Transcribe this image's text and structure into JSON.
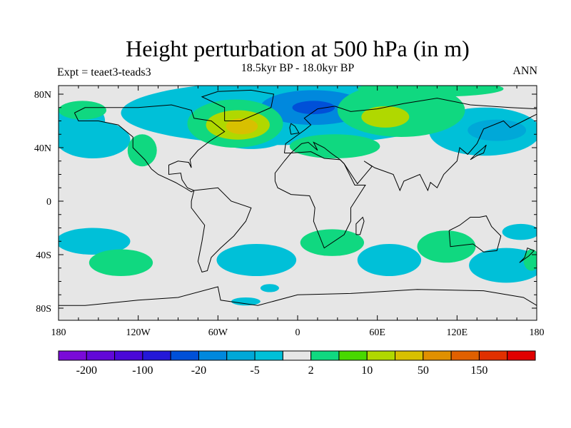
{
  "chart_data": {
    "type": "heatmap",
    "title": "Height perturbation at 500 hPa (in m)",
    "subtitle": "18.5kyr BP - 18.0kyr BP",
    "left_label": "Expt = teaet3-teads3",
    "right_label": "ANN",
    "xlim": [
      -180,
      180
    ],
    "ylim": [
      -89,
      86
    ],
    "x_ticks": [
      {
        "v": -180,
        "label": "180"
      },
      {
        "v": -120,
        "label": "120W"
      },
      {
        "v": -60,
        "label": "60W"
      },
      {
        "v": 0,
        "label": "0"
      },
      {
        "v": 60,
        "label": "60E"
      },
      {
        "v": 120,
        "label": "120E"
      },
      {
        "v": 180,
        "label": "180"
      }
    ],
    "y_ticks": [
      {
        "v": 80,
        "label": "80N"
      },
      {
        "v": 40,
        "label": "40N"
      },
      {
        "v": 0,
        "label": "0"
      },
      {
        "v": -40,
        "label": "40S"
      },
      {
        "v": -80,
        "label": "80S"
      }
    ],
    "colorbar": {
      "colors": [
        "#7a0ad8",
        "#6208d8",
        "#4a08d8",
        "#2418d8",
        "#0050d8",
        "#0088dd",
        "#00a8d8",
        "#00c0d8",
        "#e6e6e6",
        "#10d880",
        "#48d800",
        "#b0d800",
        "#d8c000",
        "#e09000",
        "#e06000",
        "#e03000",
        "#e00000"
      ],
      "labels": [
        {
          "after_box": 1,
          "label": "-200"
        },
        {
          "after_box": 3,
          "label": "-100"
        },
        {
          "after_box": 5,
          "label": "-20"
        },
        {
          "after_box": 7,
          "label": "-5"
        },
        {
          "after_box": 9,
          "label": "2"
        },
        {
          "after_box": 11,
          "label": "10"
        },
        {
          "after_box": 13,
          "label": "50"
        },
        {
          "after_box": 15,
          "label": "150"
        }
      ]
    },
    "anomaly_regions": [
      {
        "lon": -9,
        "lat": 66,
        "rlon": 124,
        "rlat": 24,
        "color_index": 7
      },
      {
        "lon": -154,
        "lat": 46,
        "rlon": 28,
        "rlat": 14,
        "color_index": 7
      },
      {
        "lon": -165,
        "lat": 60,
        "rlon": 20,
        "rlat": 14,
        "color_index": 7
      },
      {
        "lon": 141,
        "lat": 52,
        "rlon": 42,
        "rlat": 18,
        "color_index": 7
      },
      {
        "lon": -35,
        "lat": 47,
        "rlon": 25,
        "rlat": 8,
        "color_index": 7
      },
      {
        "lon": 12,
        "lat": 70,
        "rlon": 40,
        "rlat": 13,
        "color_index": 5
      },
      {
        "lon": 12,
        "lat": 70,
        "rlon": 16,
        "rlat": 5,
        "color_index": 4
      },
      {
        "lon": 150,
        "lat": 53,
        "rlon": 22,
        "rlat": 8,
        "color_index": 6
      },
      {
        "lon": 78,
        "lat": 68,
        "rlon": 48,
        "rlat": 20,
        "color_index": 9
      },
      {
        "lon": 100,
        "lat": 84,
        "rlon": 55,
        "rlat": 6,
        "color_index": 9
      },
      {
        "lon": 66,
        "lat": 63,
        "rlon": 18,
        "rlat": 8,
        "color_index": 11
      },
      {
        "lon": -47,
        "lat": 58,
        "rlon": 36,
        "rlat": 18,
        "color_index": 9
      },
      {
        "lon": -45,
        "lat": 57,
        "rlon": 24,
        "rlat": 11,
        "color_index": 11
      },
      {
        "lon": -42,
        "lat": 56,
        "rlon": 12,
        "rlat": 6,
        "color_index": 12
      },
      {
        "lon": 28,
        "lat": 41,
        "rlon": 34,
        "rlat": 9,
        "color_index": 9
      },
      {
        "lon": -117,
        "lat": 38,
        "rlon": 11,
        "rlat": 12,
        "color_index": 9
      },
      {
        "lon": -162,
        "lat": 68,
        "rlon": 18,
        "rlat": 7,
        "color_index": 9
      },
      {
        "lon": -154,
        "lat": -30,
        "rlon": 28,
        "rlat": 10,
        "color_index": 7
      },
      {
        "lon": -133,
        "lat": -46,
        "rlon": 24,
        "rlat": 10,
        "color_index": 9
      },
      {
        "lon": -31,
        "lat": -44,
        "rlon": 30,
        "rlat": 12,
        "color_index": 7
      },
      {
        "lon": 26,
        "lat": -31,
        "rlon": 24,
        "rlat": 10,
        "color_index": 9
      },
      {
        "lon": 69,
        "lat": -44,
        "rlon": 24,
        "rlat": 12,
        "color_index": 7
      },
      {
        "lon": 112,
        "lat": -34,
        "rlon": 22,
        "rlat": 12,
        "color_index": 9
      },
      {
        "lon": 157,
        "lat": -48,
        "rlon": 28,
        "rlat": 13,
        "color_index": 7
      },
      {
        "lon": 168,
        "lat": -23,
        "rlon": 14,
        "rlat": 6,
        "color_index": 7
      },
      {
        "lon": 176,
        "lat": -44,
        "rlon": 6,
        "rlat": 8,
        "color_index": 9
      },
      {
        "lon": -39,
        "lat": -75,
        "rlon": 11,
        "rlat": 3,
        "color_index": 7
      },
      {
        "lon": -21,
        "lat": -65,
        "rlon": 7,
        "rlat": 3,
        "color_index": 7
      }
    ]
  }
}
